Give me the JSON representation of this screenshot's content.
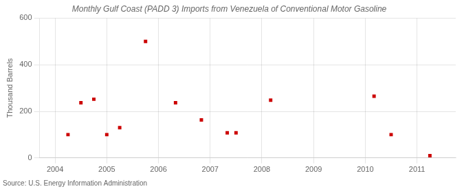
{
  "chart_data": {
    "type": "scatter",
    "title": "Monthly Gulf Coast (PADD 3) Imports from Venezuela of Conventional Motor Gasoline",
    "ylabel": "Thousand Barrels",
    "source": "Source: U.S. Energy Information Administration",
    "x": [
      2004.25,
      2004.5,
      2004.75,
      2005.0,
      2005.25,
      2005.75,
      2006.33,
      2006.83,
      2007.33,
      2007.5,
      2008.17,
      2010.17,
      2010.5,
      2011.25
    ],
    "values": [
      100,
      237,
      252,
      100,
      130,
      500,
      237,
      163,
      108,
      108,
      248,
      265,
      100,
      10
    ],
    "color": "#cc0000",
    "marker": "square",
    "xlim": [
      2003.7,
      2011.75
    ],
    "xticks": [
      2004,
      2005,
      2006,
      2007,
      2008,
      2009,
      2010,
      2011
    ],
    "ylim": [
      0,
      600
    ],
    "yticks": [
      0,
      200,
      400,
      600
    ],
    "grid": true
  }
}
